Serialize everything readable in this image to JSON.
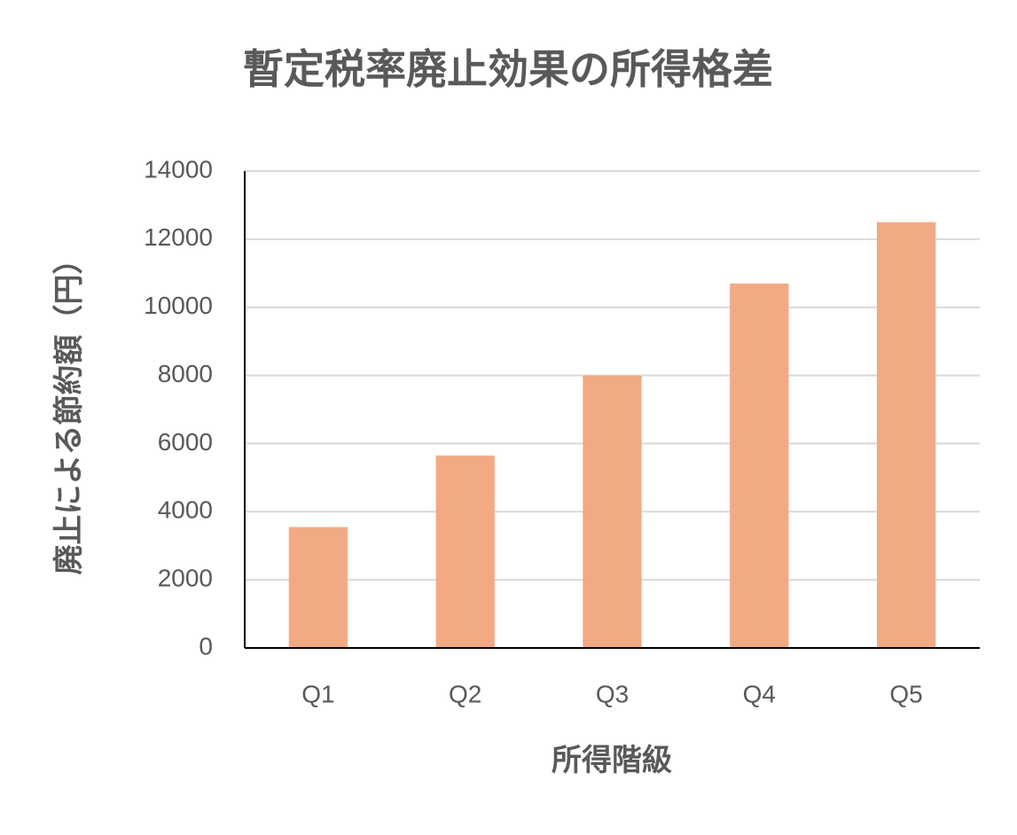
{
  "chart_data": {
    "type": "bar",
    "title": "暫定税率廃止効果の所得格差",
    "x_label": "所得階級",
    "y_label": "廃止による節約額（円）",
    "categories": [
      "Q1",
      "Q2",
      "Q3",
      "Q4",
      "Q5"
    ],
    "values": [
      3550,
      5650,
      8000,
      10700,
      12500
    ],
    "color": "#f2aa84",
    "ylim": [
      0,
      14000
    ],
    "yticks": [
      0,
      2000,
      4000,
      6000,
      8000,
      10000,
      12000,
      14000
    ],
    "grid": true
  }
}
